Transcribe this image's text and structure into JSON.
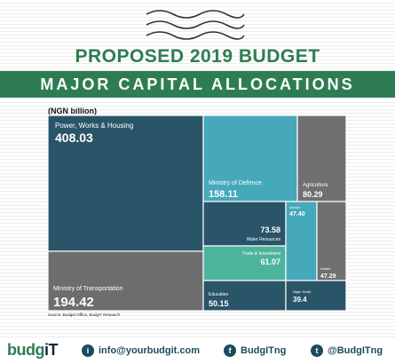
{
  "header": {
    "title": "PROPOSED 2019 BUDGET",
    "banner": "MAJOR CAPITAL ALLOCATIONS"
  },
  "chart_data": {
    "type": "treemap",
    "unit_label": "(NGN billion)",
    "source": "Source: Budget Office, BudgIT Research",
    "items": [
      {
        "name": "Power, Works & Housing",
        "value": "408.03",
        "color": "#2a5468"
      },
      {
        "name": "Ministry of Transportation",
        "value": "194.42",
        "color": "#6d6d6d"
      },
      {
        "name": "Ministry of Defence",
        "value": "158.11",
        "color": "#46a8bb"
      },
      {
        "name": "Agriculture",
        "value": "80.29",
        "color": "#707070"
      },
      {
        "name": "Water Resources",
        "value": "73.58",
        "color": "#2a5468"
      },
      {
        "name": "Trade & Investment",
        "value": "61.07",
        "color": "#4db39d"
      },
      {
        "name": "Education",
        "value": "50.15",
        "color": "#2a5468"
      },
      {
        "name": "Interior",
        "value": "47.40",
        "color": "#46a8bb"
      },
      {
        "name": "Health",
        "value": "47.29",
        "color": "#707070"
      },
      {
        "name": "Niger Delta",
        "value": "39.4",
        "color": "#2a5468"
      }
    ]
  },
  "footer": {
    "logo_main": "budg",
    "logo_accent": "iT",
    "email": "info@yourbudgit.com",
    "facebook": "BudgITng",
    "twitter": "@BudgITng",
    "email_icon": "i",
    "facebook_icon": "f",
    "twitter_icon": "t"
  }
}
